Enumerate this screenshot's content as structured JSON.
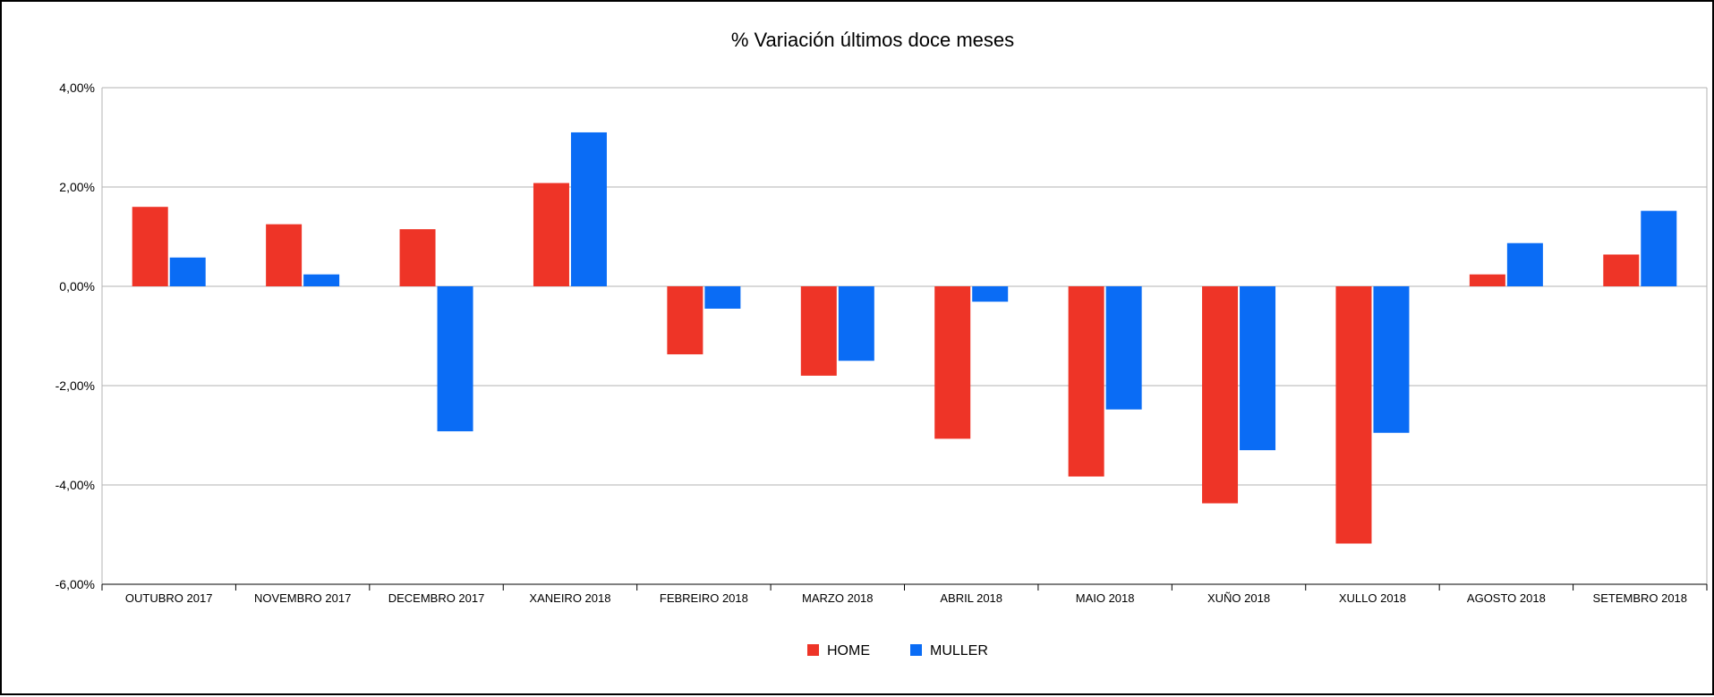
{
  "chart_data": {
    "type": "bar",
    "title": "% Variación últimos doce meses",
    "xlabel": "",
    "ylabel": "",
    "ylim": [
      -6,
      4
    ],
    "yticks": [
      4,
      2,
      0,
      -2,
      -4,
      -6
    ],
    "ytick_labels": [
      "4,00%",
      "2,00%",
      "0,00%",
      "-2,00%",
      "-4,00%",
      "-6,00%"
    ],
    "grid": true,
    "legend_position": "bottom",
    "categories": [
      "OUTUBRO 2017",
      "NOVEMBRO 2017",
      "DECEMBRO 2017",
      "XANEIRO 2018",
      "FEBREIRO 2018",
      "MARZO 2018",
      "ABRIL 2018",
      "MAIO 2018",
      "XUÑO 2018",
      "XULLO 2018",
      "AGOSTO 2018",
      "SETEMBRO 2018"
    ],
    "series": [
      {
        "name": "HOME",
        "color": "#ee3427",
        "values": [
          1.6,
          1.25,
          1.15,
          2.08,
          -1.37,
          -1.8,
          -3.07,
          -3.83,
          -4.37,
          -5.18,
          0.24,
          0.64
        ]
      },
      {
        "name": "MULLER",
        "color": "#0a6cf5",
        "values": [
          0.58,
          0.24,
          -2.92,
          3.1,
          -0.45,
          -1.5,
          -0.31,
          -2.48,
          -3.3,
          -2.95,
          0.87,
          1.52
        ]
      }
    ]
  }
}
